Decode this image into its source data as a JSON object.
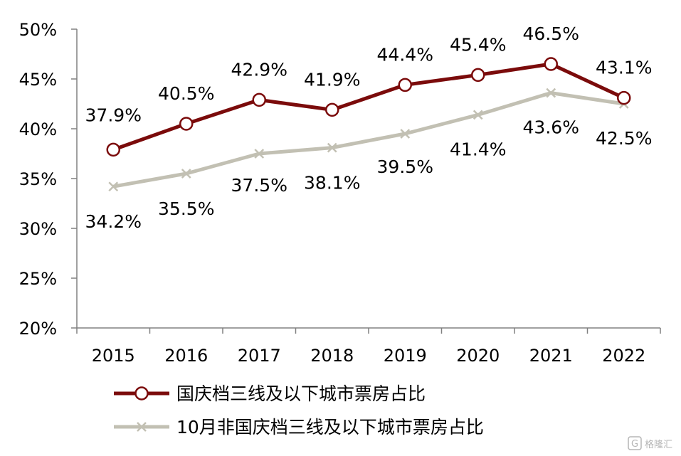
{
  "chart_data": {
    "type": "line",
    "title": "",
    "xlabel": "",
    "ylabel": "",
    "categories": [
      "2015",
      "2016",
      "2017",
      "2018",
      "2019",
      "2020",
      "2021",
      "2022"
    ],
    "ylim": [
      20,
      50
    ],
    "yticks": [
      "20%",
      "25%",
      "30%",
      "35%",
      "40%",
      "45%",
      "50%"
    ],
    "grid": false,
    "legend_position": "bottom",
    "series": [
      {
        "name": "国庆档三线及以下城市票房占比",
        "values": [
          37.9,
          40.5,
          42.9,
          41.9,
          44.4,
          45.4,
          46.5,
          43.1
        ],
        "labels": [
          "37.9%",
          "40.5%",
          "42.9%",
          "41.9%",
          "44.4%",
          "45.4%",
          "46.5%",
          "43.1%"
        ],
        "color": "#7b0b0b",
        "marker": "circle"
      },
      {
        "name": "10月非国庆档三线及以下城市票房占比",
        "values": [
          34.2,
          35.5,
          37.5,
          38.1,
          39.5,
          41.4,
          43.6,
          42.5
        ],
        "labels": [
          "34.2%",
          "35.5%",
          "37.5%",
          "38.1%",
          "39.5%",
          "41.4%",
          "43.6%",
          "42.5%"
        ],
        "color": "#c2c0b3",
        "marker": "x"
      }
    ]
  },
  "watermark": "格隆汇"
}
